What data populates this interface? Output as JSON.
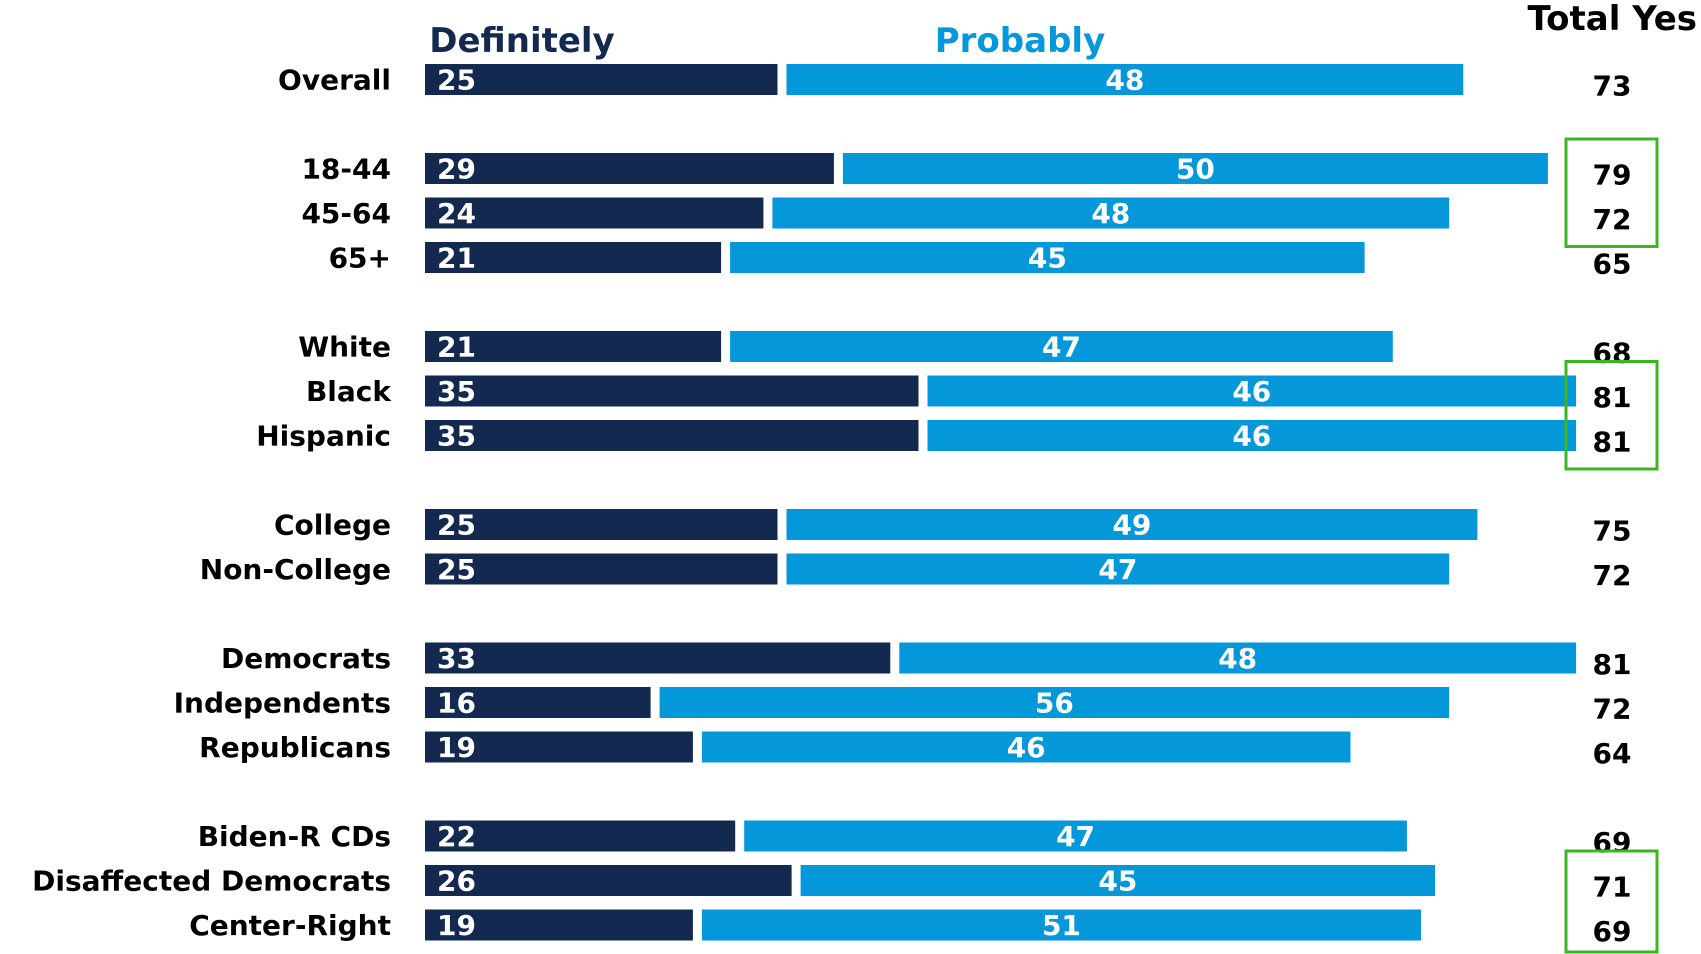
{
  "chart_data": {
    "type": "bar",
    "orientation": "horizontal",
    "stacked": true,
    "legend": [
      {
        "name": "Definitely",
        "color": "#14294f"
      },
      {
        "name": "Probably",
        "color": "#0497d9"
      }
    ],
    "total_header": "Total Yes",
    "highlight_color": "#3cb521",
    "categories": [
      "Overall",
      "18-44",
      "45-64",
      "65+",
      "White",
      "Black",
      "Hispanic",
      "College",
      "Non-College",
      "Democrats",
      "Independents",
      "Republicans",
      "Biden-R CDs",
      "Disaffected Democrats",
      "Center-Right"
    ],
    "groups": [
      1,
      2,
      2,
      2,
      3,
      3,
      3,
      4,
      4,
      5,
      5,
      5,
      6,
      6,
      6
    ],
    "series": [
      {
        "name": "Definitely",
        "values": [
          25,
          29,
          24,
          21,
          21,
          35,
          35,
          25,
          25,
          33,
          16,
          19,
          22,
          26,
          19
        ]
      },
      {
        "name": "Probably",
        "values": [
          48,
          50,
          48,
          45,
          47,
          46,
          46,
          49,
          47,
          48,
          56,
          46,
          47,
          45,
          51
        ]
      }
    ],
    "totals": [
      "73",
      "79",
      "72",
      "65",
      "68",
      "81",
      "81",
      "75",
      "72",
      "81",
      "72",
      "64",
      "69",
      "71",
      "69"
    ],
    "highlighted_totals": [
      [
        "18-44",
        "45-64"
      ],
      [
        "Black",
        "Hispanic"
      ],
      [
        "Disaffected Democrats",
        "Center-Right"
      ]
    ]
  }
}
